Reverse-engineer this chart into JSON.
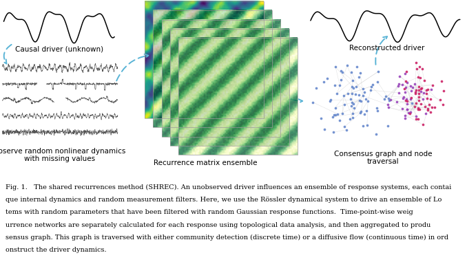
{
  "background_color": "#ffffff",
  "caption_lines": [
    "Fig. 1.   The shared recurrences method (SHREC). An unobserved driver influences an ensemble of response systems, each contai",
    "que internal dynamics and random measurement filters. Here, we use the Rössler dynamical system to drive an ensemble of Lo",
    "tems with random parameters that have been filtered with random Gaussian response functions.  Time-point-wise weig",
    "urrence networks are separately calculated for each response using topological data analysis, and then aggregated to produ",
    "sensus graph. This graph is traversed with either community detection (discrete time) or a diffusive flow (continuous time) in ord",
    "onstruct the driver dynamics."
  ],
  "label_causal": "Causal driver (unknown)",
  "label_observe": "Observe random nonlinear dynamics\nwith missing values",
  "label_recurrence": "Recurrence matrix ensemble",
  "label_reconstructed": "Reconstructed driver",
  "label_consensus": "Consensus graph and node\ntraversal",
  "arrow_color": "#5ab4d6",
  "text_color": "#000000",
  "edge_color": "#bbbbbb",
  "caption_fontsize": 7.0,
  "label_fontsize": 7.5
}
